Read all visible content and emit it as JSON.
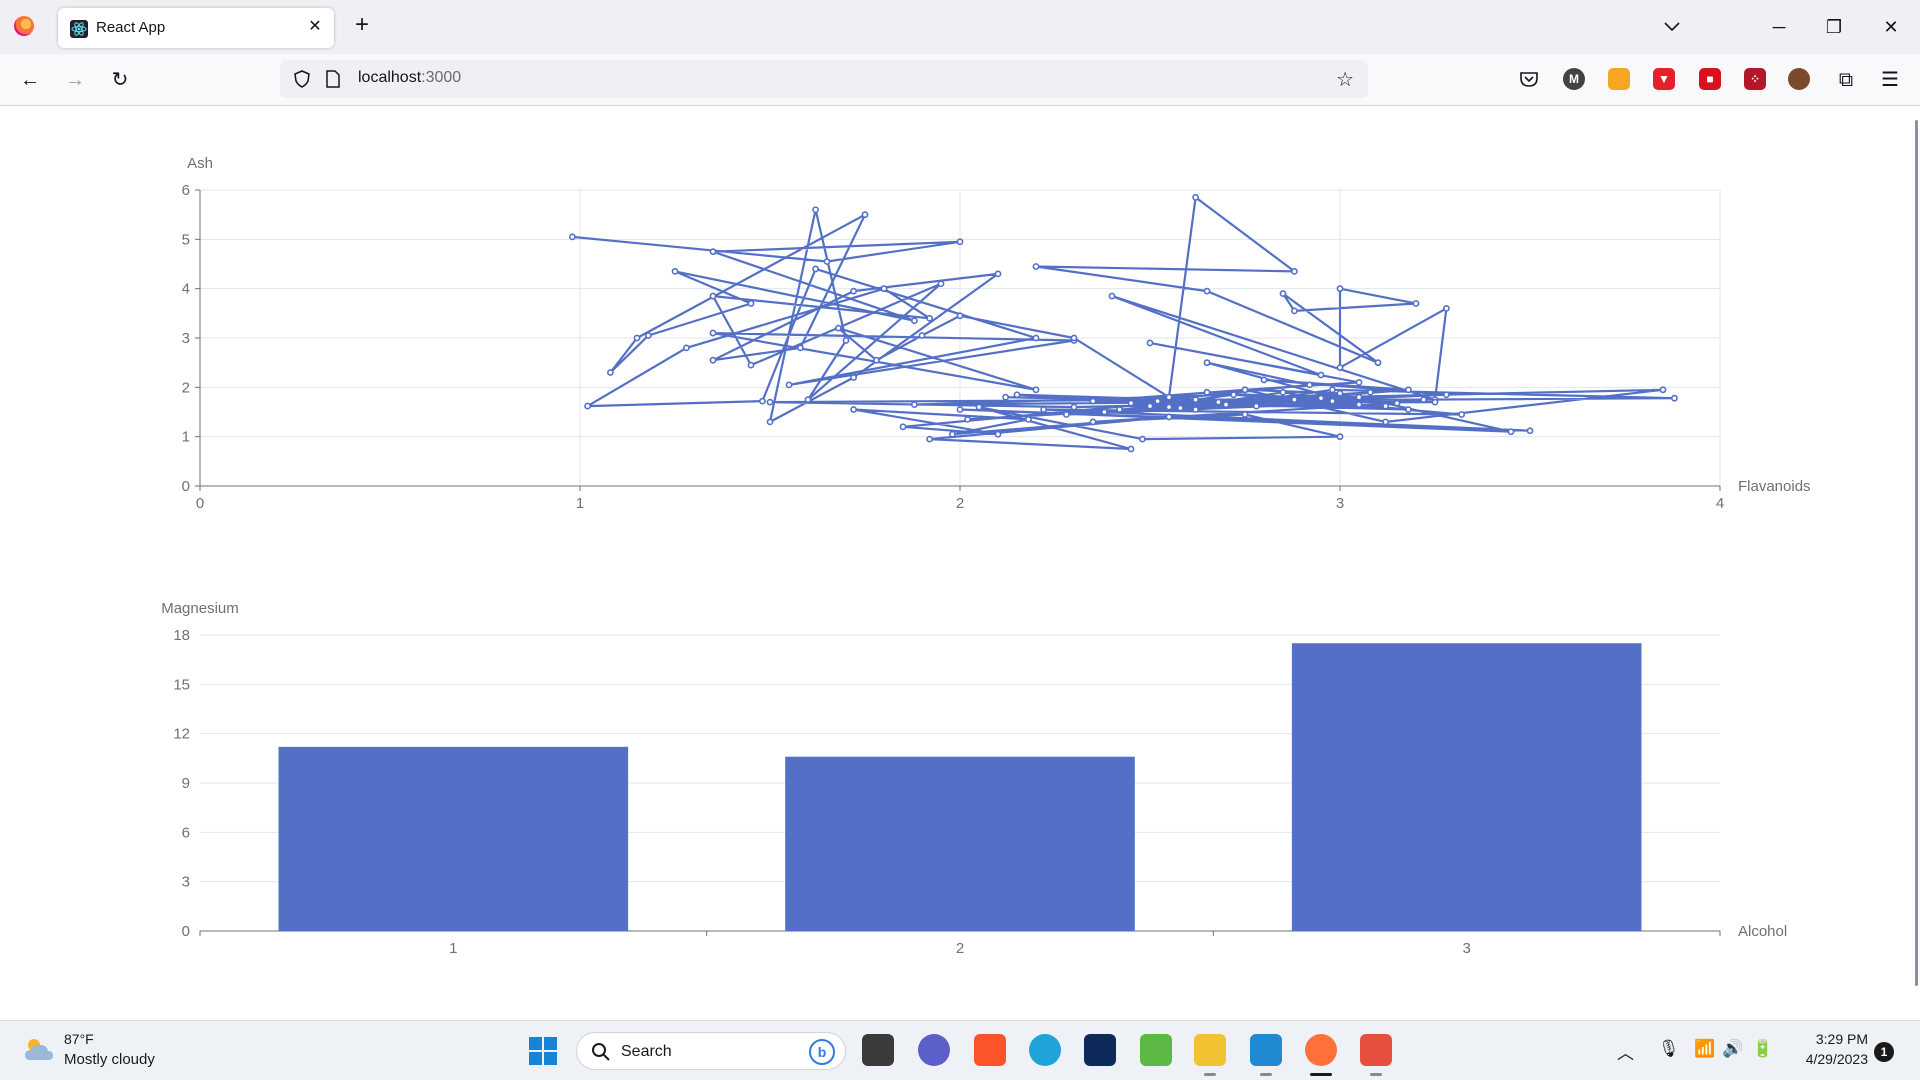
{
  "browser": {
    "tab_title": "React App",
    "url_host": "localhost",
    "url_port": ":3000"
  },
  "taskbar": {
    "weather_temp": "87°F",
    "weather_desc": "Mostly cloudy",
    "search_placeholder": "Search",
    "time": "3:29 PM",
    "date": "4/29/2023",
    "notification_count": "1"
  },
  "chart_data": [
    {
      "type": "line",
      "xlabel": "Flavanoids",
      "ylabel": "Ash",
      "xlim": [
        0,
        4
      ],
      "ylim": [
        0,
        6
      ],
      "x_ticks": [
        "0",
        "1",
        "2",
        "3",
        "4"
      ],
      "y_ticks": [
        "0",
        "1",
        "2",
        "3",
        "4",
        "5",
        "6"
      ],
      "grid": true,
      "color": "#5470c6",
      "points": [
        [
          0.98,
          5.05
        ],
        [
          1.65,
          4.55
        ],
        [
          2.0,
          4.95
        ],
        [
          1.35,
          4.75
        ],
        [
          1.88,
          3.35
        ],
        [
          1.25,
          4.35
        ],
        [
          1.45,
          3.7
        ],
        [
          1.18,
          3.05
        ],
        [
          1.08,
          2.3
        ],
        [
          1.15,
          3.0
        ],
        [
          1.75,
          5.5
        ],
        [
          1.58,
          2.8
        ],
        [
          1.35,
          2.55
        ],
        [
          1.72,
          3.95
        ],
        [
          2.1,
          4.3
        ],
        [
          1.72,
          2.2
        ],
        [
          1.5,
          1.3
        ],
        [
          1.62,
          5.6
        ],
        [
          1.7,
          2.95
        ],
        [
          1.6,
          1.75
        ],
        [
          1.95,
          4.1
        ],
        [
          1.45,
          2.45
        ],
        [
          1.35,
          3.85
        ],
        [
          1.92,
          3.4
        ],
        [
          1.8,
          4.0
        ],
        [
          1.28,
          2.8
        ],
        [
          1.02,
          1.62
        ],
        [
          1.48,
          1.72
        ],
        [
          1.62,
          4.4
        ],
        [
          2.2,
          3.0
        ],
        [
          1.55,
          2.05
        ],
        [
          2.3,
          2.95
        ],
        [
          1.35,
          3.1
        ],
        [
          2.2,
          1.95
        ],
        [
          1.68,
          3.2
        ],
        [
          1.78,
          2.55
        ],
        [
          1.9,
          3.05
        ],
        [
          2.0,
          3.45
        ],
        [
          2.3,
          3.0
        ],
        [
          2.55,
          1.8
        ],
        [
          2.62,
          5.85
        ],
        [
          2.88,
          4.35
        ],
        [
          2.2,
          4.45
        ],
        [
          2.65,
          3.95
        ],
        [
          3.1,
          2.5
        ],
        [
          2.85,
          3.9
        ],
        [
          2.88,
          3.55
        ],
        [
          3.2,
          3.7
        ],
        [
          3.0,
          4.0
        ],
        [
          3.0,
          2.4
        ],
        [
          3.28,
          3.6
        ],
        [
          3.25,
          1.75
        ],
        [
          2.4,
          3.85
        ],
        [
          2.95,
          2.25
        ],
        [
          2.5,
          2.9
        ],
        [
          3.05,
          2.1
        ],
        [
          2.75,
          1.95
        ],
        [
          3.12,
          1.3
        ],
        [
          3.85,
          1.95
        ],
        [
          2.52,
          1.72
        ],
        [
          3.88,
          1.78
        ],
        [
          2.98,
          1.95
        ],
        [
          2.62,
          1.55
        ],
        [
          3.05,
          1.8
        ],
        [
          3.45,
          1.1
        ],
        [
          2.0,
          1.55
        ],
        [
          3.5,
          1.12
        ],
        [
          2.22,
          1.55
        ],
        [
          3.32,
          1.45
        ],
        [
          2.65,
          1.9
        ],
        [
          3.15,
          1.68
        ],
        [
          2.35,
          1.3
        ],
        [
          2.75,
          1.45
        ],
        [
          3.0,
          1.0
        ],
        [
          2.48,
          0.95
        ],
        [
          2.05,
          1.6
        ],
        [
          2.45,
          0.75
        ],
        [
          1.92,
          0.95
        ],
        [
          2.55,
          1.4
        ],
        [
          1.98,
          1.05
        ],
        [
          2.18,
          1.35
        ],
        [
          1.72,
          1.55
        ],
        [
          2.1,
          1.05
        ],
        [
          1.85,
          1.2
        ],
        [
          2.62,
          1.75
        ],
        [
          1.5,
          1.7
        ],
        [
          2.3,
          1.6
        ],
        [
          2.98,
          1.72
        ],
        [
          1.88,
          1.65
        ],
        [
          2.72,
          1.85
        ],
        [
          2.38,
          1.5
        ],
        [
          3.22,
          1.75
        ],
        [
          2.28,
          1.45
        ],
        [
          2.78,
          1.62
        ],
        [
          3.12,
          1.62
        ],
        [
          2.15,
          1.85
        ],
        [
          2.7,
          1.65
        ],
        [
          2.02,
          1.35
        ],
        [
          2.95,
          1.78
        ],
        [
          2.42,
          1.55
        ],
        [
          3.28,
          1.85
        ],
        [
          2.8,
          2.15
        ],
        [
          3.18,
          1.95
        ],
        [
          2.58,
          1.58
        ],
        [
          2.85,
          1.9
        ],
        [
          3.05,
          1.65
        ],
        [
          2.65,
          2.5
        ],
        [
          2.92,
          2.05
        ],
        [
          2.45,
          1.68
        ],
        [
          3.25,
          1.7
        ],
        [
          2.12,
          1.8
        ],
        [
          2.68,
          1.7
        ],
        [
          3.08,
          1.9
        ],
        [
          2.5,
          1.62
        ],
        [
          2.88,
          1.75
        ],
        [
          3.18,
          1.55
        ],
        [
          2.35,
          1.72
        ],
        [
          2.75,
          1.95
        ],
        [
          3.0,
          1.88
        ],
        [
          2.55,
          1.6
        ]
      ]
    },
    {
      "type": "bar",
      "xlabel": "Alcohol",
      "ylabel": "Magnesium",
      "categories": [
        "1",
        "2",
        "3"
      ],
      "values": [
        11.2,
        10.6,
        17.5
      ],
      "ylim": [
        0,
        18
      ],
      "y_ticks": [
        "0",
        "3",
        "6",
        "9",
        "12",
        "15",
        "18"
      ],
      "grid": true,
      "color": "#5470c6"
    }
  ]
}
